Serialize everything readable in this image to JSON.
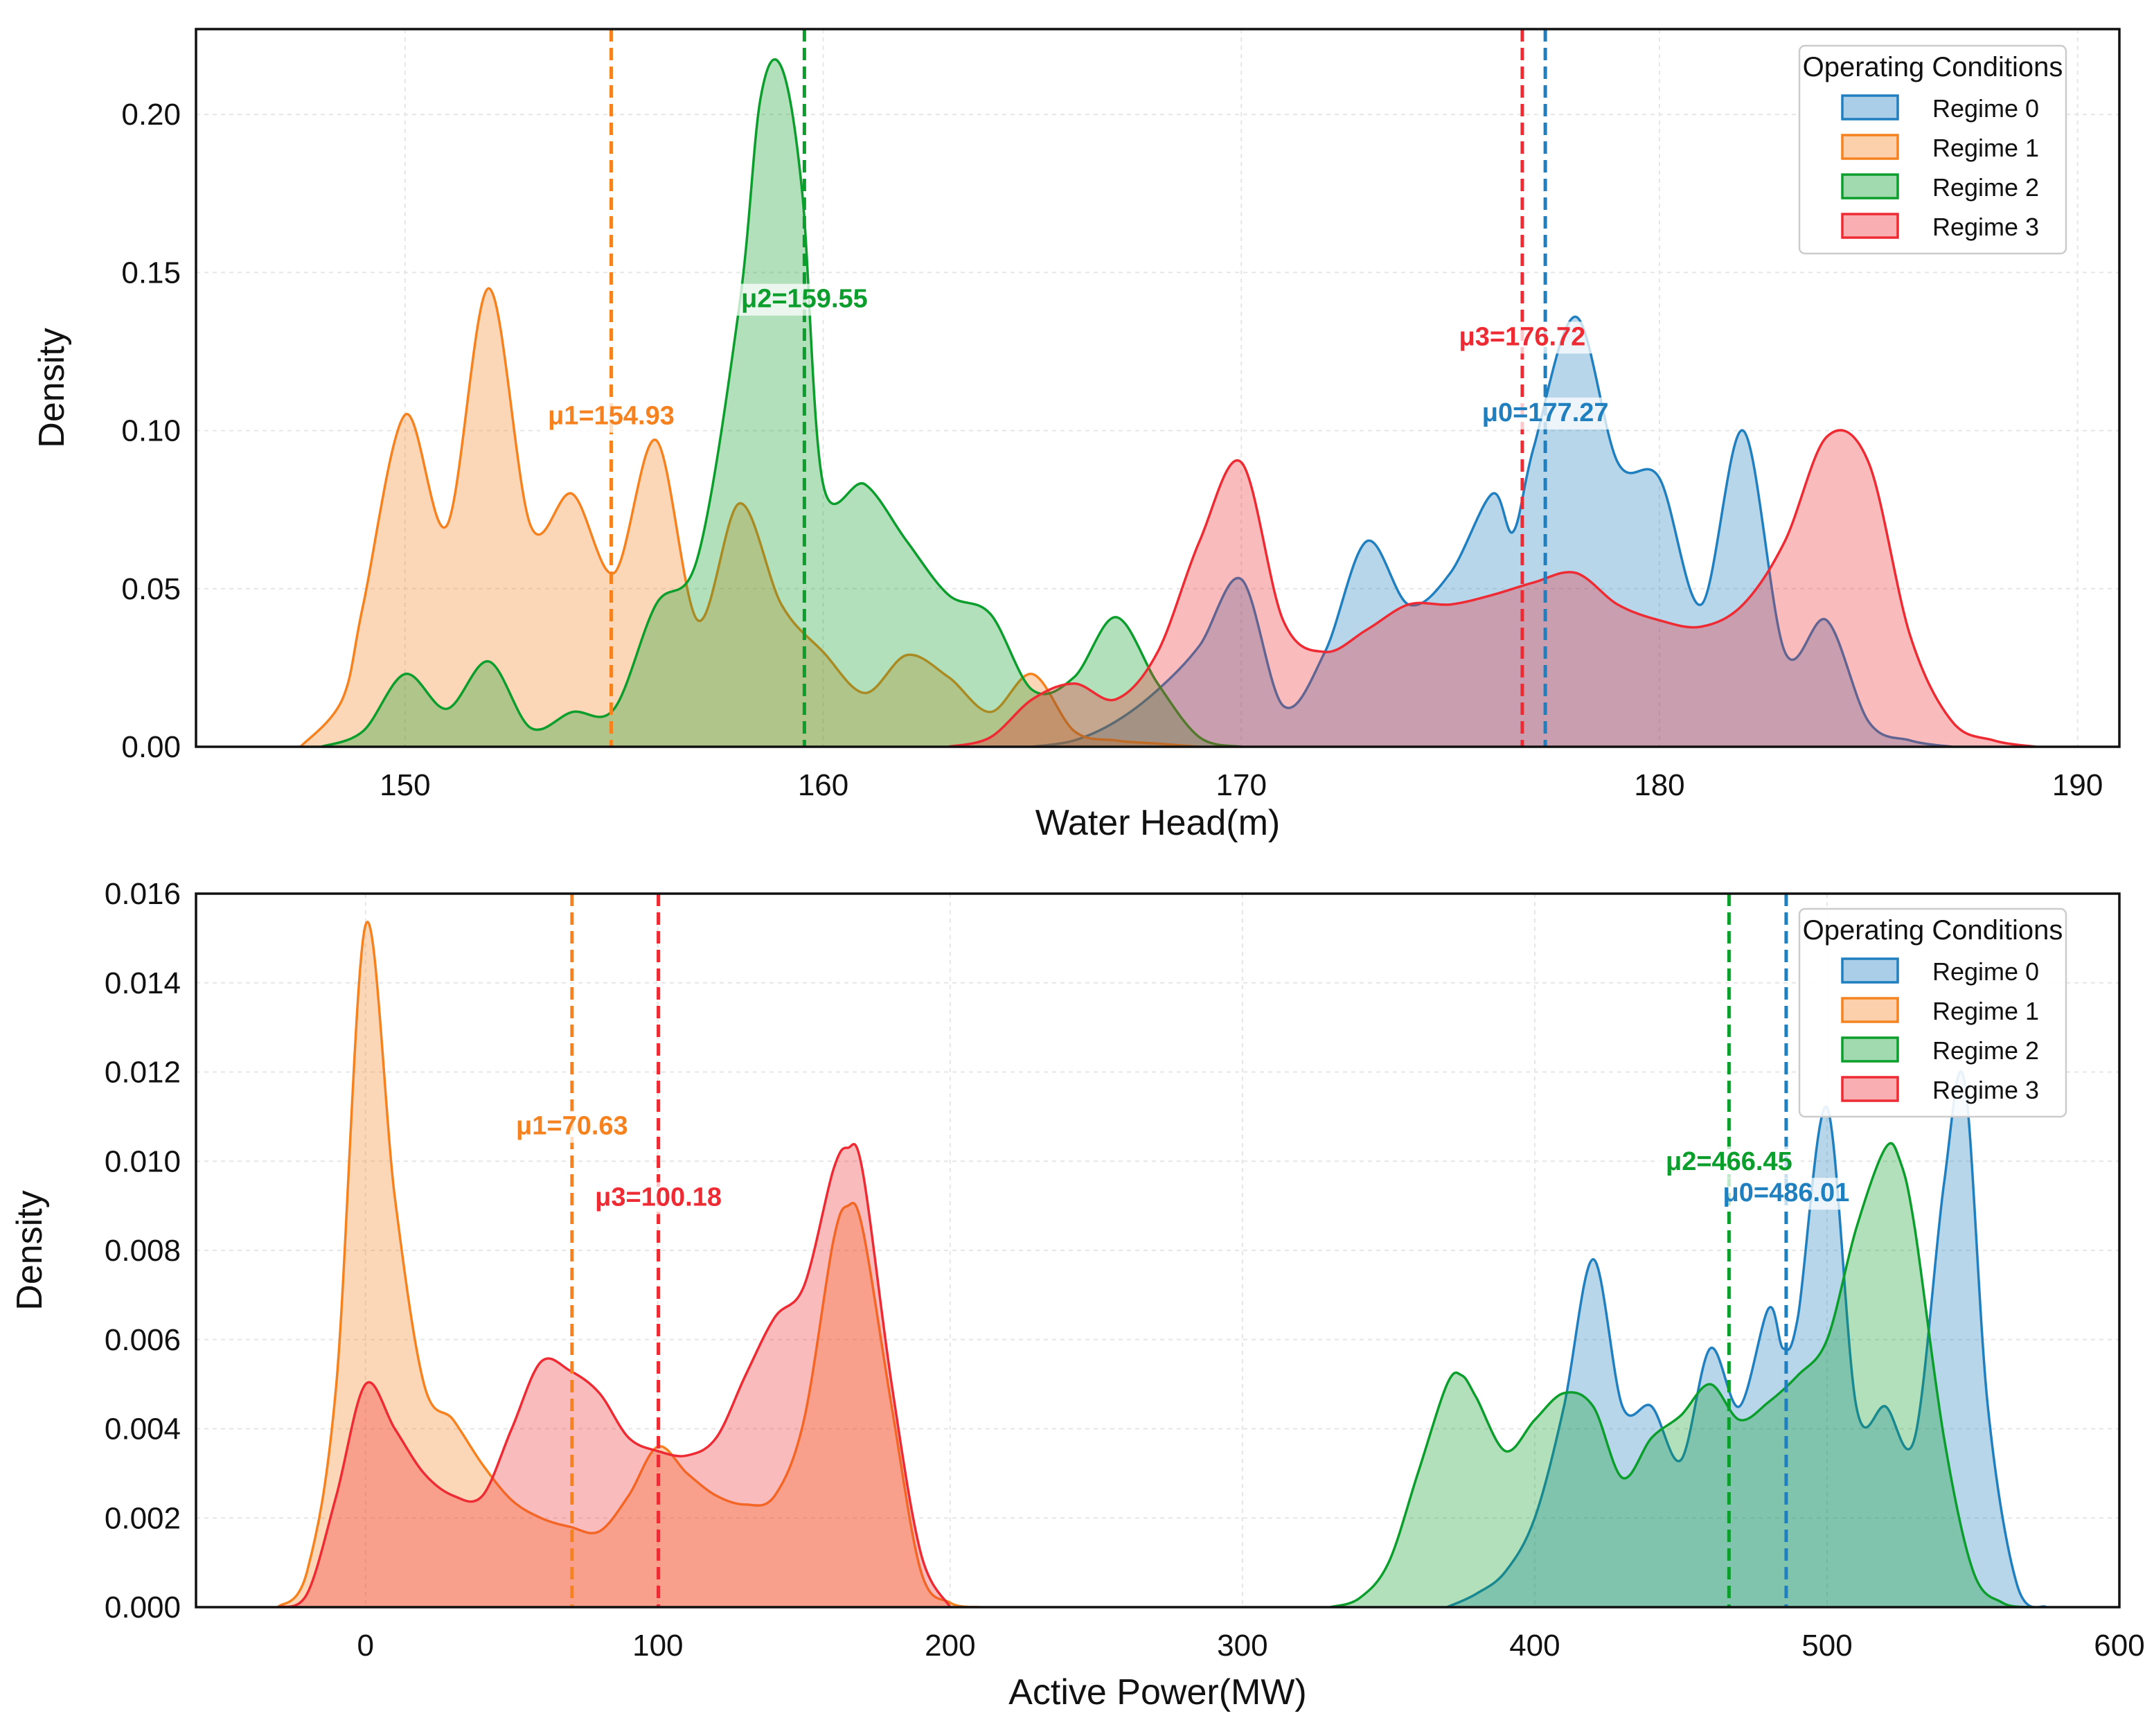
{
  "figure": {
    "background": "#ffffff"
  },
  "colors": {
    "regime0": "#1f7fbf",
    "regime1": "#f5821f",
    "regime2": "#0b9e2c",
    "regime3": "#ee2a33"
  },
  "chart_data": [
    {
      "type": "area",
      "subtype": "kde",
      "title": "",
      "xlabel": "Water Head(m)",
      "ylabel": "Density",
      "xlim": [
        145,
        191
      ],
      "ylim": [
        0,
        0.227
      ],
      "xticks": [
        150,
        160,
        170,
        180,
        190
      ],
      "xtick_labels": [
        "150",
        "160",
        "170",
        "180",
        "190"
      ],
      "yticks": [
        0,
        0.05,
        0.1,
        0.15,
        0.2
      ],
      "ytick_labels": [
        "0.00",
        "0.05",
        "0.10",
        "0.15",
        "0.20"
      ],
      "grid": true,
      "legend": {
        "title": "Operating Conditions",
        "position": "top-right",
        "entries": [
          "Regime 0",
          "Regime 1",
          "Regime 2",
          "Regime 3"
        ]
      },
      "series": [
        {
          "name": "Regime 0",
          "color": "#1f7fbf",
          "x": [
            165,
            166,
            167,
            168,
            169,
            170,
            171,
            172,
            173,
            174,
            175,
            176,
            176.5,
            177,
            178,
            179,
            180,
            181,
            182,
            183,
            184,
            185,
            186,
            187
          ],
          "y": [
            0,
            0.002,
            0.008,
            0.018,
            0.032,
            0.053,
            0.013,
            0.03,
            0.065,
            0.045,
            0.055,
            0.08,
            0.068,
            0.095,
            0.136,
            0.09,
            0.085,
            0.045,
            0.1,
            0.03,
            0.04,
            0.008,
            0.002,
            0
          ]
        },
        {
          "name": "Regime 1",
          "color": "#f5821f",
          "x": [
            147.5,
            148.5,
            149,
            150,
            151,
            152,
            153,
            154,
            155,
            156,
            157,
            158,
            159,
            160,
            161,
            162,
            163,
            164,
            165,
            166,
            167,
            168,
            169
          ],
          "y": [
            0,
            0.015,
            0.045,
            0.105,
            0.07,
            0.145,
            0.07,
            0.08,
            0.055,
            0.097,
            0.04,
            0.077,
            0.045,
            0.03,
            0.017,
            0.029,
            0.022,
            0.011,
            0.023,
            0.005,
            0.002,
            0.001,
            0
          ]
        },
        {
          "name": "Regime 2",
          "color": "#0b9e2c",
          "x": [
            148,
            149,
            150,
            151,
            152,
            153,
            154,
            155,
            156,
            157,
            158,
            158.5,
            159,
            159.5,
            160,
            161,
            162,
            163,
            164,
            165,
            166,
            167,
            168,
            169,
            170
          ],
          "y": [
            0,
            0.005,
            0.023,
            0.012,
            0.027,
            0.006,
            0.011,
            0.012,
            0.045,
            0.06,
            0.14,
            0.205,
            0.215,
            0.175,
            0.083,
            0.083,
            0.065,
            0.048,
            0.042,
            0.018,
            0.022,
            0.041,
            0.02,
            0.003,
            0
          ]
        },
        {
          "name": "Regime 3",
          "color": "#ee2a33",
          "x": [
            163,
            164,
            165,
            166,
            167,
            168,
            169,
            170,
            171,
            172,
            173,
            174,
            175,
            176,
            177,
            178,
            179,
            180,
            181,
            182,
            183,
            184,
            185,
            186,
            187,
            188,
            189
          ],
          "y": [
            0,
            0.003,
            0.015,
            0.02,
            0.015,
            0.03,
            0.065,
            0.09,
            0.04,
            0.03,
            0.037,
            0.045,
            0.045,
            0.048,
            0.052,
            0.055,
            0.045,
            0.04,
            0.038,
            0.045,
            0.065,
            0.098,
            0.09,
            0.035,
            0.008,
            0.002,
            0
          ]
        }
      ],
      "mean_lines": [
        {
          "series": "Regime 0",
          "label": "μ0=177.27",
          "x": 177.27,
          "label_y": 0.103
        },
        {
          "series": "Regime 1",
          "label": "μ1=154.93",
          "x": 154.93,
          "label_y": 0.102
        },
        {
          "series": "Regime 2",
          "label": "μ2=159.55",
          "x": 159.55,
          "label_y": 0.139
        },
        {
          "series": "Regime 3",
          "label": "μ3=176.72",
          "x": 176.72,
          "label_y": 0.127
        }
      ]
    },
    {
      "type": "area",
      "subtype": "kde",
      "title": "",
      "xlabel": "Active Power(MW)",
      "ylabel": "Density",
      "xlim": [
        -58,
        600
      ],
      "ylim": [
        0,
        0.016
      ],
      "xticks": [
        0,
        100,
        200,
        300,
        400,
        500,
        600
      ],
      "xtick_labels": [
        "0",
        "100",
        "200",
        "300",
        "400",
        "500",
        "600"
      ],
      "yticks": [
        0,
        0.002,
        0.004,
        0.006,
        0.008,
        0.01,
        0.012,
        0.014,
        0.016
      ],
      "ytick_labels": [
        "0.000",
        "0.002",
        "0.004",
        "0.006",
        "0.008",
        "0.010",
        "0.012",
        "0.014",
        "0.016"
      ],
      "grid": true,
      "legend": {
        "title": "Operating Conditions",
        "position": "top-right",
        "entries": [
          "Regime 0",
          "Regime 1",
          "Regime 2",
          "Regime 3"
        ]
      },
      "series": [
        {
          "name": "Regime 0",
          "color": "#1f7fbf",
          "x": [
            370,
            380,
            390,
            400,
            410,
            420,
            430,
            440,
            450,
            460,
            470,
            480,
            485,
            490,
            500,
            510,
            520,
            530,
            540,
            547,
            555,
            565,
            575
          ],
          "y": [
            0,
            0.0003,
            0.0008,
            0.002,
            0.0045,
            0.0078,
            0.0045,
            0.0045,
            0.0033,
            0.0058,
            0.0045,
            0.0067,
            0.0058,
            0.0065,
            0.0112,
            0.0045,
            0.0045,
            0.0038,
            0.0095,
            0.0118,
            0.0045,
            0.0005,
            0
          ]
        },
        {
          "name": "Regime 1",
          "color": "#f5821f",
          "x": [
            -30,
            -20,
            -10,
            0,
            10,
            20,
            30,
            40,
            50,
            60,
            70,
            80,
            90,
            100,
            110,
            120,
            130,
            140,
            150,
            160,
            165,
            170,
            180,
            190,
            200,
            210
          ],
          "y": [
            0,
            0.0008,
            0.005,
            0.0153,
            0.0092,
            0.005,
            0.0042,
            0.0032,
            0.0024,
            0.002,
            0.0018,
            0.0017,
            0.0025,
            0.0036,
            0.003,
            0.0025,
            0.0023,
            0.0025,
            0.0042,
            0.0082,
            0.009,
            0.0085,
            0.0045,
            0.0008,
            0.0001,
            0
          ]
        },
        {
          "name": "Regime 2",
          "color": "#0b9e2c",
          "x": [
            330,
            340,
            350,
            360,
            370,
            375,
            380,
            390,
            400,
            410,
            420,
            430,
            440,
            450,
            460,
            470,
            480,
            490,
            500,
            510,
            520,
            525,
            530,
            540,
            550,
            560,
            570
          ],
          "y": [
            0,
            0.0002,
            0.001,
            0.003,
            0.005,
            0.0052,
            0.0047,
            0.0035,
            0.0042,
            0.0048,
            0.0045,
            0.0029,
            0.0038,
            0.0043,
            0.005,
            0.0042,
            0.0046,
            0.0052,
            0.006,
            0.0085,
            0.0103,
            0.01,
            0.0085,
            0.0038,
            0.0008,
            0.0001,
            0
          ]
        },
        {
          "name": "Regime 3",
          "color": "#ee2a33",
          "x": [
            -30,
            -20,
            -10,
            0,
            10,
            20,
            30,
            40,
            50,
            60,
            70,
            80,
            90,
            100,
            110,
            120,
            130,
            140,
            150,
            160,
            165,
            170,
            180,
            190,
            200
          ],
          "y": [
            0,
            0.0003,
            0.0025,
            0.005,
            0.004,
            0.003,
            0.0025,
            0.0025,
            0.004,
            0.0055,
            0.0053,
            0.0048,
            0.0038,
            0.0035,
            0.0034,
            0.0038,
            0.0052,
            0.0065,
            0.0072,
            0.0098,
            0.0103,
            0.0098,
            0.005,
            0.0012,
            0
          ]
        }
      ],
      "mean_lines": [
        {
          "series": "Regime 0",
          "label": "μ0=486.01",
          "x": 486.01,
          "label_y": 0.0091
        },
        {
          "series": "Regime 1",
          "label": "μ1=70.63",
          "x": 70.63,
          "label_y": 0.0106
        },
        {
          "series": "Regime 2",
          "label": "μ2=466.45",
          "x": 466.45,
          "label_y": 0.0098
        },
        {
          "series": "Regime 3",
          "label": "μ3=100.18",
          "x": 100.18,
          "label_y": 0.009
        }
      ]
    }
  ]
}
